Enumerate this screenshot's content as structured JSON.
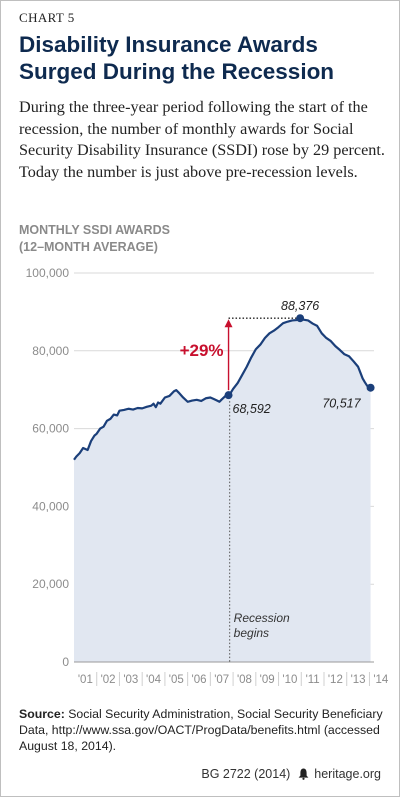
{
  "header": {
    "chart_number": "CHART 5",
    "title": "Disability Insurance Awards Surged During the Recession",
    "subtitle": "During the three-year period following the start of the recession, the number of monthly awards for Social Security Disability Insurance (SSDI) rose by 29 percent. Today the number is just above pre-recession levels."
  },
  "colors": {
    "title": "#0e2a4f",
    "line": "#1b3f7a",
    "area": "#e1e7f1",
    "highlight": "#c8102e",
    "axis_text": "#8c8c8c"
  },
  "chart_data": {
    "type": "area",
    "ylabel": [
      "MONTHLY SSDI AWARDS",
      "(12–MONTH AVERAGE)"
    ],
    "xlabel": "",
    "ylim": [
      0,
      100000
    ],
    "xlim": [
      2001,
      2014.2
    ],
    "y_ticks": [
      0,
      20000,
      40000,
      60000,
      80000,
      100000
    ],
    "y_tick_labels": [
      "0",
      "20,000",
      "40,000",
      "60,000",
      "80,000",
      "100,000"
    ],
    "x_ticks": [
      2001,
      2002,
      2003,
      2004,
      2005,
      2006,
      2007,
      2008,
      2009,
      2010,
      2011,
      2012,
      2013,
      2014
    ],
    "x_tick_labels": [
      "'01",
      "'02",
      "'03",
      "'04",
      "'05",
      "'06",
      "'07",
      "'08",
      "'09",
      "'10",
      "'11",
      "'12",
      "'13",
      "'14"
    ],
    "grid": true,
    "legend": "none",
    "series": [
      {
        "x": [
          2001.0,
          2001.1,
          2001.25,
          2001.4,
          2001.6,
          2001.75,
          2001.9,
          2002.0,
          2002.15,
          2002.3,
          2002.45,
          2002.6,
          2002.75,
          2002.9,
          2003.0,
          2003.2,
          2003.4,
          2003.6,
          2003.8,
          2004.0,
          2004.2,
          2004.4,
          2004.5,
          2004.6,
          2004.7,
          2004.8,
          2005.0,
          2005.2,
          2005.4,
          2005.5,
          2005.6,
          2005.8,
          2006.0,
          2006.2,
          2006.4,
          2006.6,
          2006.8,
          2007.0,
          2007.15,
          2007.3,
          2007.4,
          2007.5,
          2007.7,
          2007.8,
          2008.0,
          2008.2,
          2008.4,
          2008.6,
          2008.8,
          2009.0,
          2009.2,
          2009.4,
          2009.6,
          2009.8,
          2010.0,
          2010.2,
          2010.4,
          2010.6,
          2010.8,
          2010.95,
          2011.1,
          2011.3,
          2011.5,
          2011.7,
          2011.9,
          2012.1,
          2012.3,
          2012.5,
          2012.7,
          2012.9,
          2013.1,
          2013.3,
          2013.5,
          2013.6,
          2013.7,
          2013.8,
          2013.9,
          2014.0,
          2014.05
        ],
        "values": [
          52000,
          52800,
          53700,
          55000,
          54500,
          56800,
          58200,
          58700,
          60000,
          60500,
          62000,
          62500,
          63600,
          63400,
          64600,
          64800,
          65100,
          64900,
          65300,
          65200,
          65600,
          65900,
          66400,
          65500,
          66700,
          66400,
          68000,
          68400,
          69600,
          69900,
          69300,
          68000,
          66900,
          67200,
          67400,
          67100,
          67800,
          68000,
          67600,
          67200,
          66900,
          67500,
          68600,
          68300,
          70200,
          71700,
          73800,
          75900,
          78300,
          80400,
          81600,
          83300,
          84500,
          85200,
          86100,
          87100,
          87500,
          87800,
          87900,
          88376,
          88000,
          87800,
          87000,
          86400,
          84500,
          83300,
          82500,
          81200,
          80200,
          79100,
          78600,
          77300,
          75900,
          74400,
          72900,
          71900,
          71000,
          70517,
          70500
        ]
      }
    ],
    "annotations": {
      "start_point": {
        "x": 2007.8,
        "y": 68592,
        "label": "68,592"
      },
      "peak_point": {
        "x": 2010.95,
        "y": 88376,
        "label": "88,376"
      },
      "end_point": {
        "x": 2014.05,
        "y": 70517,
        "label": "70,517"
      },
      "increase_label": "+29%",
      "recession_start_x": 2007.85,
      "recession_label": [
        "Recession",
        "begins"
      ]
    }
  },
  "source": {
    "label": "Source:",
    "text": " Social Security Administration, Social Security Beneficiary Data, http://www.ssa.gov/OACT/ProgData/benefits.html (accessed August 18, 2014)."
  },
  "footer": {
    "report_id": "BG 2722 (2014)",
    "site": "heritage.org",
    "logo_icon": "liberty-bell-icon"
  }
}
